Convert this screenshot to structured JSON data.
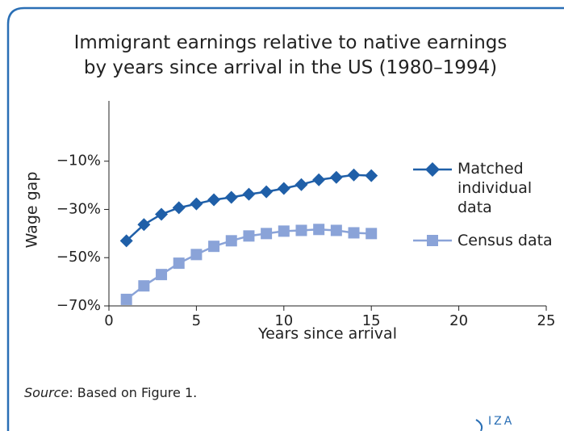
{
  "chart_data": {
    "type": "line",
    "title": "Immigrant earnings relative to native earnings by years since arrival in the US (1980–1994)",
    "x_label": "Years since arrival",
    "y_label": "Wage gap",
    "x": [
      1,
      2,
      3,
      4,
      5,
      6,
      7,
      8,
      9,
      10,
      11,
      12,
      13,
      14,
      15
    ],
    "series": [
      {
        "name": "Matched individual data",
        "color": "#1f5fa8",
        "marker": "diamond",
        "values": [
          -43,
          -36.3,
          -32,
          -29.3,
          -27.7,
          -26,
          -25,
          -23.7,
          -22.7,
          -21.3,
          -19.7,
          -17.7,
          -16.7,
          -15.7,
          -16
        ]
      },
      {
        "name": "Census data",
        "color": "#8aa3d8",
        "marker": "square",
        "values": [
          -67.3,
          -61.7,
          -57,
          -52.3,
          -48.7,
          -45.3,
          -43,
          -41,
          -40,
          -39,
          -38.7,
          -38.3,
          -38.7,
          -39.7,
          -40
        ]
      }
    ],
    "xlim": [
      0,
      25
    ],
    "xticks": [
      0,
      5,
      10,
      15,
      20,
      25
    ],
    "ylim": [
      -70,
      15
    ],
    "yticks": [
      {
        "value": -70,
        "label": "−70%"
      },
      {
        "value": -50,
        "label": "−50%"
      },
      {
        "value": -30,
        "label": "−30%"
      },
      {
        "value": -10,
        "label": "−10%"
      }
    ],
    "legend": "right",
    "source_label": "Source",
    "source_text": ": Based on Figure 1.",
    "logo": "IZA"
  }
}
